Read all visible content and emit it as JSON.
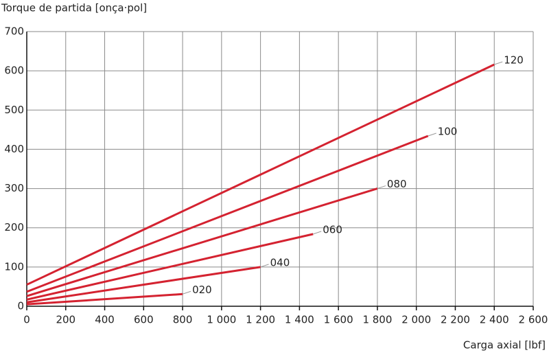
{
  "chart_data": {
    "type": "line",
    "title": "Torque de partida [onça·pol]",
    "x_label": "Carga axial [lbf]",
    "xlim": [
      0,
      2600
    ],
    "xticks": [
      0,
      200,
      400,
      600,
      800,
      {
        "value": 1000,
        "label": "1 000"
      },
      {
        "value": 1200,
        "label": "1 200"
      },
      {
        "value": 1400,
        "label": "1 400"
      },
      {
        "value": 1600,
        "label": "1 600"
      },
      {
        "value": 1800,
        "label": "1 800"
      },
      {
        "value": 2000,
        "label": "2 000"
      },
      {
        "value": 2200,
        "label": "2 200"
      },
      {
        "value": 2400,
        "label": "2 400"
      },
      {
        "value": 2600,
        "label": "2 600"
      }
    ],
    "ylim": [
      0,
      700
    ],
    "yticks": [
      0,
      100,
      200,
      300,
      400,
      500,
      600,
      700
    ],
    "grid": true,
    "series": [
      {
        "name": "020",
        "color": "#d42230",
        "x": [
          0,
          800
        ],
        "values": [
          5,
          31
        ]
      },
      {
        "name": "040",
        "color": "#d42230",
        "x": [
          0,
          1200
        ],
        "values": [
          10,
          100
        ]
      },
      {
        "name": "060",
        "color": "#d42230",
        "x": [
          0,
          1470
        ],
        "values": [
          17,
          184
        ]
      },
      {
        "name": "080",
        "color": "#d42230",
        "x": [
          0,
          1800
        ],
        "values": [
          26,
          300
        ]
      },
      {
        "name": "100",
        "color": "#d42230",
        "x": [
          0,
          2060
        ],
        "values": [
          37,
          434
        ]
      },
      {
        "name": "120",
        "color": "#d42230",
        "x": [
          0,
          2400
        ],
        "values": [
          55,
          616
        ]
      }
    ]
  }
}
